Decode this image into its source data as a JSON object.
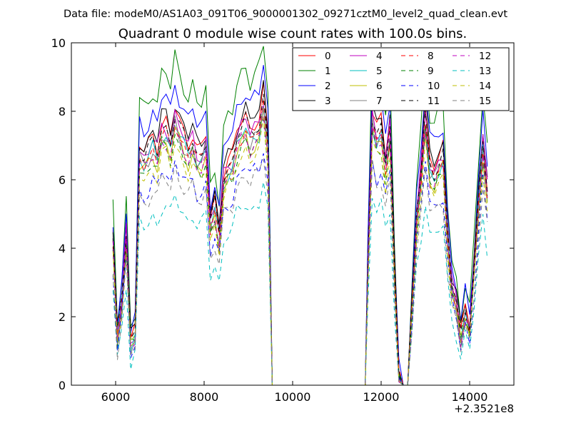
{
  "chart_data": {
    "type": "line",
    "suptitle": "Data file: modeM0/AS1A03_091T06_9000001302_09271cztM0_level2_quad_clean.evt",
    "title": "Quadrant 0 module wise count rates with 100.0s bins.",
    "xlabel": "",
    "ylabel": "",
    "x_offset_label": "+2.3521e8",
    "xlim": [
      5000,
      15000
    ],
    "ylim": [
      0,
      10
    ],
    "x_ticks": [
      6000,
      8000,
      10000,
      12000,
      14000
    ],
    "x_tick_labels": [
      "6000",
      "8000",
      "10000",
      "12000",
      "14000"
    ],
    "y_ticks": [
      0,
      2,
      4,
      6,
      8,
      10
    ],
    "y_tick_labels": [
      "0",
      "2",
      "4",
      "6",
      "8",
      "10"
    ],
    "grid": false,
    "legend_position": "top-right",
    "legend_columns": 4,
    "base_profile": {
      "x": [
        5940,
        6040,
        6140,
        6240,
        6340,
        6440,
        6540,
        6640,
        6740,
        6840,
        6940,
        7040,
        7140,
        7240,
        7340,
        7440,
        7540,
        7640,
        7740,
        7840,
        7940,
        8040,
        8140,
        8240,
        8340,
        8440,
        8540,
        8640,
        8740,
        8840,
        8940,
        9040,
        9140,
        9240,
        9340,
        9440,
        9540,
        9600,
        11640,
        11700,
        11800,
        11900,
        12000,
        12100,
        12200,
        12300,
        12400,
        12500,
        12600,
        12700,
        12800,
        12900,
        13000,
        13100,
        13200,
        13300,
        13400,
        13500,
        13600,
        13700,
        13800,
        13900,
        14000,
        14100,
        14200,
        14300,
        14400
      ],
      "y": [
        4.3,
        1.5,
        2.6,
        4.5,
        1.3,
        1.6,
        6.9,
        6.7,
        6.9,
        7.2,
        6.9,
        7.6,
        7.6,
        7.2,
        8.0,
        7.6,
        7.3,
        7.0,
        7.3,
        6.8,
        6.8,
        7.2,
        4.8,
        5.3,
        4.5,
        6.2,
        6.5,
        6.6,
        7.3,
        7.6,
        7.8,
        7.4,
        7.6,
        7.7,
        8.5,
        7.2,
        0.0,
        0.0,
        0.0,
        3.5,
        8.0,
        7.4,
        7.6,
        6.6,
        7.6,
        3.5,
        0.3,
        0.0,
        0.0,
        2.5,
        5.0,
        6.3,
        8.0,
        6.5,
        6.3,
        6.6,
        6.8,
        4.5,
        3.0,
        2.5,
        1.5,
        2.3,
        1.7,
        3.5,
        5.5,
        7.2,
        5.8
      ]
    },
    "series": [
      {
        "name": "0",
        "color": "#ff0000",
        "dash": "solid",
        "scale": 1.0,
        "shift": 0.1
      },
      {
        "name": "1",
        "color": "#008000",
        "dash": "solid",
        "scale": 1.18,
        "shift": 0.15
      },
      {
        "name": "2",
        "color": "#0000ff",
        "dash": "solid",
        "scale": 1.08,
        "shift": 0.2
      },
      {
        "name": "3",
        "color": "#000000",
        "dash": "solid",
        "scale": 1.03,
        "shift": 0.05
      },
      {
        "name": "4",
        "color": "#bf00bf",
        "dash": "solid",
        "scale": 1.0,
        "shift": -0.05
      },
      {
        "name": "5",
        "color": "#00bfbf",
        "dash": "solid",
        "scale": 0.97,
        "shift": -0.1
      },
      {
        "name": "6",
        "color": "#bfbf00",
        "dash": "solid",
        "scale": 0.95,
        "shift": -0.15
      },
      {
        "name": "7",
        "color": "#808080",
        "dash": "solid",
        "scale": 0.98,
        "shift": -0.2
      },
      {
        "name": "8",
        "color": "#ff0000",
        "dash": "dashed",
        "scale": 0.96,
        "shift": 0.0
      },
      {
        "name": "9",
        "color": "#008000",
        "dash": "dashed",
        "scale": 0.93,
        "shift": -0.1
      },
      {
        "name": "10",
        "color": "#0000ff",
        "dash": "dashed",
        "scale": 0.85,
        "shift": -0.2
      },
      {
        "name": "11",
        "color": "#000000",
        "dash": "dashed",
        "scale": 0.99,
        "shift": 0.0
      },
      {
        "name": "12",
        "color": "#bf00bf",
        "dash": "dashed",
        "scale": 0.94,
        "shift": -0.05
      },
      {
        "name": "13",
        "color": "#00bfbf",
        "dash": "dashed",
        "scale": 0.72,
        "shift": -0.25
      },
      {
        "name": "14",
        "color": "#bfbf00",
        "dash": "dashed",
        "scale": 0.9,
        "shift": -0.1
      },
      {
        "name": "15",
        "color": "#808080",
        "dash": "dashed",
        "scale": 0.82,
        "shift": -0.2
      }
    ]
  }
}
